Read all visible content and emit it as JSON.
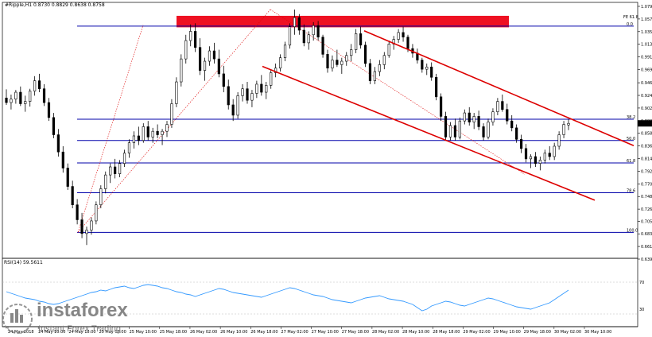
{
  "header": {
    "title": "#Ripple,H1  0.8730 0.8829 0.8638 0.8758"
  },
  "rsi": {
    "label": "RSI(14) 59.5611",
    "levels": [
      "70",
      "30"
    ]
  },
  "watermark": {
    "brand": "instaforex",
    "tagline": "Instant Forex Trading"
  },
  "colors": {
    "up": "#ffffff",
    "down": "#000000",
    "fib": "#0000aa",
    "channel": "#dd0000",
    "zone": "#ee1122",
    "rsi": "#3399ff"
  },
  "chart_data": {
    "type": "candlestick",
    "price_ticks": [
      "1.0795",
      "1.0575",
      "1.0355",
      "1.0135",
      "0.9915",
      "0.9695",
      "0.9465",
      "0.9245",
      "0.9025",
      "0.8805",
      "0.8585",
      "0.8365",
      "0.8145",
      "0.7925",
      "0.7705",
      "0.7485",
      "0.7265",
      "0.7055",
      "0.6835",
      "0.6615",
      "0.6395"
    ],
    "x_ticks": [
      "24 May 2018",
      "24 May 10:00",
      "24 May 18:00",
      "25 May 02:00",
      "25 May 10:00",
      "25 May 18:00",
      "26 May 02:00",
      "26 May 10:00",
      "26 May 18:00",
      "27 May 02:00",
      "27 May 10:00",
      "27 May 18:00",
      "28 May 02:00",
      "28 May 10:00",
      "28 May 18:00",
      "29 May 02:00",
      "29 May 10:00",
      "29 May 18:00",
      "30 May 02:00",
      "30 May 10:00"
    ],
    "current_price": "0.8758",
    "fib_levels": [
      {
        "label": "0.0",
        "price": 1.045
      },
      {
        "label": "38.2",
        "price": 0.883
      },
      {
        "label": "50.0",
        "price": 0.846
      },
      {
        "label": "61.8",
        "price": 0.807
      },
      {
        "label": "78.6",
        "price": 0.755
      },
      {
        "label": "100.0",
        "price": 0.686
      }
    ],
    "fib_zone_label": "FE 61.8",
    "fib_zone": [
      1.063,
      1.043
    ],
    "channel": {
      "upper": [
        [
          "27 May 10:00",
          1.037
        ],
        [
          "31 May 02:00",
          0.837
        ]
      ],
      "lower": [
        [
          "26 May 18:00",
          0.975
        ],
        [
          "31 May 00:00",
          0.742
        ]
      ]
    },
    "ohlc": [
      [
        0.92,
        0.935,
        0.908,
        0.912
      ],
      [
        0.912,
        0.926,
        0.9,
        0.918
      ],
      [
        0.918,
        0.934,
        0.91,
        0.93
      ],
      [
        0.93,
        0.94,
        0.906,
        0.91
      ],
      [
        0.91,
        0.924,
        0.896,
        0.914
      ],
      [
        0.914,
        0.936,
        0.905,
        0.932
      ],
      [
        0.932,
        0.958,
        0.924,
        0.95
      ],
      [
        0.95,
        0.962,
        0.93,
        0.936
      ],
      [
        0.936,
        0.944,
        0.906,
        0.912
      ],
      [
        0.912,
        0.92,
        0.88,
        0.886
      ],
      [
        0.886,
        0.894,
        0.85,
        0.856
      ],
      [
        0.856,
        0.866,
        0.818,
        0.826
      ],
      [
        0.826,
        0.836,
        0.79,
        0.798
      ],
      [
        0.798,
        0.806,
        0.76,
        0.766
      ],
      [
        0.766,
        0.776,
        0.728,
        0.734
      ],
      [
        0.734,
        0.744,
        0.7,
        0.708
      ],
      [
        0.708,
        0.72,
        0.676,
        0.684
      ],
      [
        0.684,
        0.696,
        0.664,
        0.69
      ],
      [
        0.69,
        0.712,
        0.682,
        0.706
      ],
      [
        0.706,
        0.74,
        0.7,
        0.734
      ],
      [
        0.734,
        0.768,
        0.728,
        0.762
      ],
      [
        0.762,
        0.792,
        0.754,
        0.786
      ],
      [
        0.786,
        0.806,
        0.772,
        0.8
      ],
      [
        0.8,
        0.814,
        0.78,
        0.788
      ],
      [
        0.788,
        0.812,
        0.782,
        0.806
      ],
      [
        0.806,
        0.83,
        0.8,
        0.824
      ],
      [
        0.824,
        0.848,
        0.816,
        0.842
      ],
      [
        0.842,
        0.862,
        0.832,
        0.854
      ],
      [
        0.854,
        0.87,
        0.838,
        0.846
      ],
      [
        0.846,
        0.876,
        0.842,
        0.87
      ],
      [
        0.87,
        0.88,
        0.846,
        0.852
      ],
      [
        0.852,
        0.868,
        0.842,
        0.862
      ],
      [
        0.862,
        0.874,
        0.85,
        0.856
      ],
      [
        0.856,
        0.866,
        0.838,
        0.862
      ],
      [
        0.862,
        0.88,
        0.852,
        0.874
      ],
      [
        0.874,
        0.918,
        0.868,
        0.91
      ],
      [
        0.91,
        0.956,
        0.904,
        0.948
      ],
      [
        0.948,
        0.996,
        0.94,
        0.988
      ],
      [
        0.988,
        1.03,
        0.98,
        1.02
      ],
      [
        1.02,
        1.048,
        1.01,
        1.036
      ],
      [
        1.036,
        1.05,
        1.0,
        1.008
      ],
      [
        1.008,
        1.024,
        0.96,
        0.968
      ],
      [
        0.968,
        0.99,
        0.95,
        0.984
      ],
      [
        0.984,
        1.01,
        0.976,
        1.002
      ],
      [
        1.002,
        1.016,
        0.98,
        0.988
      ],
      [
        0.988,
        1.004,
        0.956,
        0.962
      ],
      [
        0.962,
        0.976,
        0.93,
        0.94
      ],
      [
        0.94,
        0.952,
        0.9,
        0.908
      ],
      [
        0.908,
        0.918,
        0.88,
        0.89
      ],
      [
        0.89,
        0.93,
        0.884,
        0.924
      ],
      [
        0.924,
        0.944,
        0.914,
        0.936
      ],
      [
        0.936,
        0.948,
        0.91,
        0.916
      ],
      [
        0.916,
        0.934,
        0.904,
        0.928
      ],
      [
        0.928,
        0.95,
        0.92,
        0.944
      ],
      [
        0.944,
        0.96,
        0.924,
        0.93
      ],
      [
        0.93,
        0.948,
        0.918,
        0.942
      ],
      [
        0.942,
        0.97,
        0.936,
        0.964
      ],
      [
        0.964,
        0.98,
        0.956,
        0.972
      ],
      [
        0.972,
        0.996,
        0.966,
        0.99
      ],
      [
        0.99,
        1.018,
        0.984,
        1.012
      ],
      [
        1.012,
        1.05,
        1.006,
        1.044
      ],
      [
        1.044,
        1.074,
        1.03,
        1.06
      ],
      [
        1.06,
        1.066,
        1.03,
        1.038
      ],
      [
        1.038,
        1.048,
        1.01,
        1.016
      ],
      [
        1.016,
        1.036,
        1.004,
        1.03
      ],
      [
        1.03,
        1.052,
        1.02,
        1.046
      ],
      [
        1.046,
        1.054,
        1.02,
        1.026
      ],
      [
        1.026,
        1.03,
        0.99,
        0.996
      ],
      [
        0.996,
        1.004,
        0.964,
        0.972
      ],
      [
        0.972,
        0.994,
        0.966,
        0.986
      ],
      [
        0.986,
        1.004,
        0.974,
        0.978
      ],
      [
        0.978,
        0.99,
        0.962,
        0.984
      ],
      [
        0.984,
        1.0,
        0.976,
        0.994
      ],
      [
        0.994,
        1.014,
        0.984,
        1.004
      ],
      [
        1.004,
        1.04,
        0.998,
        1.032
      ],
      [
        1.032,
        1.044,
        1.006,
        1.012
      ],
      [
        1.012,
        1.018,
        0.974,
        0.98
      ],
      [
        0.98,
        0.988,
        0.944,
        0.95
      ],
      [
        0.95,
        0.974,
        0.944,
        0.966
      ],
      [
        0.966,
        0.986,
        0.958,
        0.978
      ],
      [
        0.978,
        1.0,
        0.97,
        0.994
      ],
      [
        0.994,
        1.02,
        0.99,
        1.014
      ],
      [
        1.014,
        1.028,
        1.004,
        1.022
      ],
      [
        1.022,
        1.04,
        1.016,
        1.034
      ],
      [
        1.034,
        1.044,
        1.018,
        1.026
      ],
      [
        1.026,
        1.03,
        1.0,
        1.006
      ],
      [
        1.006,
        1.014,
        0.99,
        0.998
      ],
      [
        0.998,
        1.006,
        0.98,
        0.986
      ],
      [
        0.986,
        0.99,
        0.964,
        0.97
      ],
      [
        0.97,
        0.98,
        0.96,
        0.974
      ],
      [
        0.974,
        0.982,
        0.95,
        0.956
      ],
      [
        0.956,
        0.962,
        0.916,
        0.922
      ],
      [
        0.922,
        0.928,
        0.88,
        0.888
      ],
      [
        0.888,
        0.896,
        0.846,
        0.852
      ],
      [
        0.852,
        0.878,
        0.846,
        0.872
      ],
      [
        0.872,
        0.884,
        0.846,
        0.852
      ],
      [
        0.852,
        0.886,
        0.848,
        0.88
      ],
      [
        0.88,
        0.9,
        0.874,
        0.894
      ],
      [
        0.894,
        0.904,
        0.872,
        0.878
      ],
      [
        0.878,
        0.894,
        0.866,
        0.888
      ],
      [
        0.888,
        0.898,
        0.864,
        0.87
      ],
      [
        0.87,
        0.876,
        0.846,
        0.852
      ],
      [
        0.852,
        0.884,
        0.848,
        0.878
      ],
      [
        0.878,
        0.902,
        0.872,
        0.896
      ],
      [
        0.896,
        0.92,
        0.89,
        0.914
      ],
      [
        0.914,
        0.926,
        0.896,
        0.9
      ],
      [
        0.9,
        0.91,
        0.874,
        0.88
      ],
      [
        0.88,
        0.89,
        0.862,
        0.868
      ],
      [
        0.868,
        0.874,
        0.842,
        0.848
      ],
      [
        0.848,
        0.856,
        0.824,
        0.832
      ],
      [
        0.832,
        0.84,
        0.808,
        0.814
      ],
      [
        0.814,
        0.822,
        0.798,
        0.818
      ],
      [
        0.818,
        0.826,
        0.8,
        0.806
      ],
      [
        0.806,
        0.818,
        0.794,
        0.812
      ],
      [
        0.812,
        0.83,
        0.806,
        0.824
      ],
      [
        0.824,
        0.836,
        0.812,
        0.818
      ],
      [
        0.818,
        0.842,
        0.812,
        0.836
      ],
      [
        0.836,
        0.862,
        0.83,
        0.856
      ],
      [
        0.856,
        0.88,
        0.85,
        0.874
      ],
      [
        0.873,
        0.883,
        0.864,
        0.8758
      ]
    ],
    "rsi_values": [
      58,
      56,
      54,
      52,
      50,
      49,
      48,
      46,
      45,
      43,
      42,
      43,
      45,
      47,
      49,
      51,
      53,
      55,
      57,
      58,
      60,
      59,
      61,
      63,
      64,
      65,
      63,
      62,
      64,
      66,
      67,
      66,
      65,
      63,
      62,
      60,
      58,
      57,
      55,
      54,
      52,
      54,
      56,
      58,
      60,
      62,
      61,
      59,
      57,
      56,
      55,
      54,
      53,
      52,
      51,
      53,
      55,
      57,
      59,
      61,
      63,
      62,
      60,
      58,
      56,
      54,
      53,
      52,
      50,
      48,
      47,
      46,
      45,
      44,
      46,
      48,
      50,
      51,
      52,
      53,
      51,
      49,
      48,
      47,
      46,
      44,
      42,
      38,
      34,
      36,
      40,
      42,
      44,
      46,
      45,
      43,
      41,
      40,
      42,
      44,
      46,
      48,
      50,
      49,
      47,
      45,
      43,
      41,
      39,
      38,
      37,
      36,
      38,
      40,
      42,
      44,
      48,
      52,
      56,
      60
    ]
  }
}
